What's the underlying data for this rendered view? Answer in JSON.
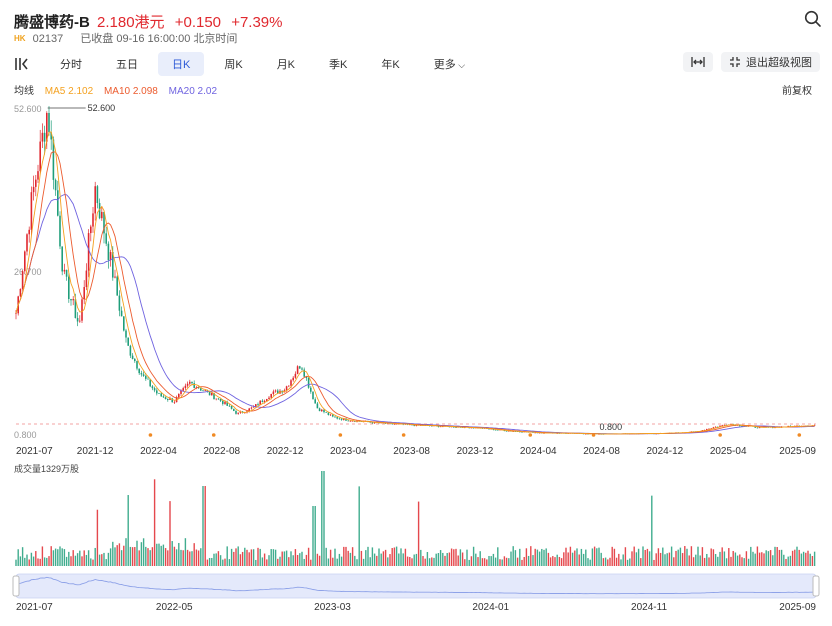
{
  "stock": {
    "name": "腾盛博药-B",
    "price": "2.180港元",
    "change": "+0.150",
    "change_pct": "+7.39%",
    "market": "HK",
    "code": "02137",
    "status": "已收盘 09-16 16:00:00 北京时间"
  },
  "toolbar": {
    "tabs": [
      {
        "label": "分时",
        "active": false
      },
      {
        "label": "五日",
        "active": false
      },
      {
        "label": "日K",
        "active": true
      },
      {
        "label": "周K",
        "active": false
      },
      {
        "label": "月K",
        "active": false
      },
      {
        "label": "季K",
        "active": false
      },
      {
        "label": "年K",
        "active": false
      },
      {
        "label": "更多",
        "active": false
      }
    ],
    "exit_label": "退出超级视图"
  },
  "indicators": {
    "label": "均线",
    "ma5": "MA5 2.102",
    "ma10": "MA10 2.098",
    "ma20": "MA20 2.02",
    "adjust": "前复权"
  },
  "colors": {
    "up": "#e0282e",
    "down": "#1f9e7a",
    "ma5": "#f4a11f",
    "ma10": "#ec5b2e",
    "ma20": "#6f63e0",
    "accent": "#2d5bd7"
  },
  "chart_data": {
    "type": "line",
    "title": "",
    "y_axis_labels": [
      "52.600",
      "26.700",
      "0.800"
    ],
    "max_marker": "52.600",
    "min_marker": "0.800",
    "x_labels": [
      "2021-07",
      "2021-12",
      "2022-04",
      "2022-08",
      "2022-12",
      "2023-04",
      "2023-08",
      "2023-12",
      "2024-04",
      "2024-08",
      "2024-12",
      "2025-04",
      "2025-09"
    ],
    "price_points": [
      [
        "2021-07",
        20
      ],
      [
        "2021-08",
        38
      ],
      [
        "2021-09",
        52.6
      ],
      [
        "2021-10",
        26
      ],
      [
        "2021-11",
        18
      ],
      [
        "2021-12",
        40
      ],
      [
        "2022-01",
        28
      ],
      [
        "2022-02",
        15
      ],
      [
        "2022-03",
        10
      ],
      [
        "2022-04",
        7
      ],
      [
        "2022-05",
        6
      ],
      [
        "2022-06",
        9
      ],
      [
        "2022-07",
        7.5
      ],
      [
        "2022-08",
        6
      ],
      [
        "2022-09",
        4
      ],
      [
        "2022-10",
        5
      ],
      [
        "2022-11",
        7
      ],
      [
        "2022-12",
        8
      ],
      [
        "2023-01",
        12
      ],
      [
        "2023-02",
        5
      ],
      [
        "2023-03",
        3.5
      ],
      [
        "2023-04",
        3
      ],
      [
        "2023-06",
        2.5
      ],
      [
        "2023-08",
        2.2
      ],
      [
        "2023-10",
        2
      ],
      [
        "2023-12",
        1.8
      ],
      [
        "2024-02",
        1.3
      ],
      [
        "2024-04",
        1
      ],
      [
        "2024-06",
        0.9
      ],
      [
        "2024-08",
        0.8
      ],
      [
        "2024-10",
        0.85
      ],
      [
        "2024-12",
        0.9
      ],
      [
        "2025-02",
        1.2
      ],
      [
        "2025-04",
        2.4
      ],
      [
        "2025-06",
        1.8
      ],
      [
        "2025-08",
        2
      ],
      [
        "2025-09",
        2.18
      ]
    ],
    "volume_label": "成交量1329万股",
    "navigator_labels": [
      "2021-07",
      "2022-05",
      "2023-03",
      "2024-01",
      "2024-11",
      "2025-09"
    ]
  }
}
